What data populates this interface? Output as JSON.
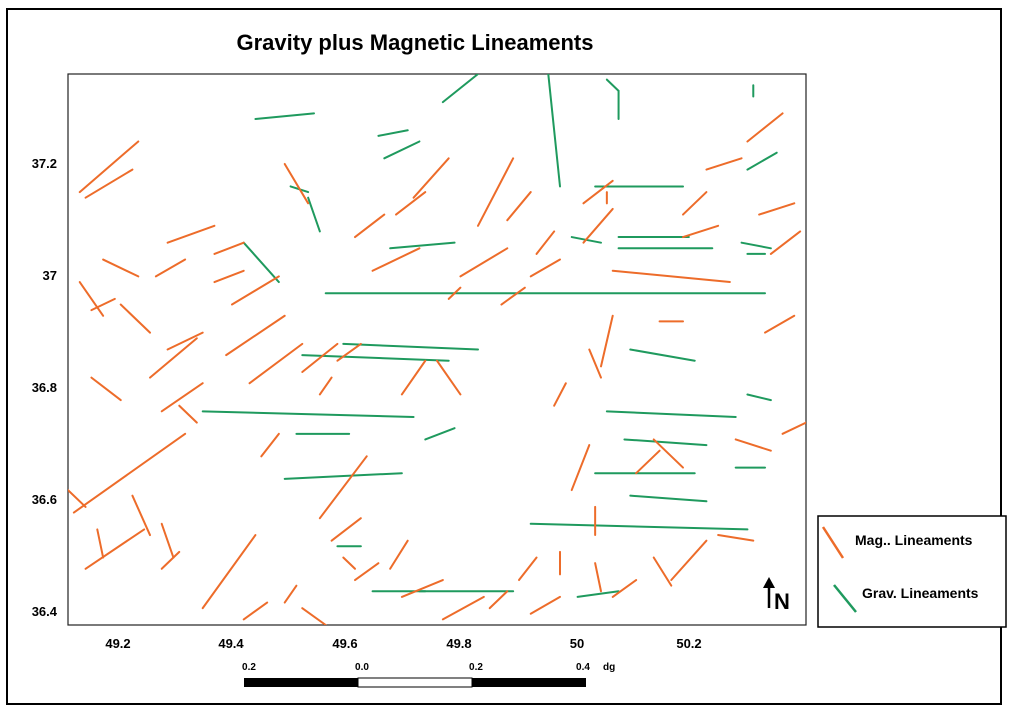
{
  "title": "Gravity plus Magnetic Lineaments",
  "map": {
    "x_ticks": [
      "49.2",
      "49.4",
      "49.6",
      "49.8",
      "50",
      "50.2"
    ],
    "y_ticks": [
      "37.2",
      "37",
      "36.8",
      "36.6",
      "36.4"
    ],
    "xlim": [
      49.13,
      50.39
    ],
    "ylim": [
      36.37,
      37.35
    ]
  },
  "scale_bar": {
    "labels": [
      "0.2",
      "0.0",
      "0.2",
      "0.4"
    ],
    "unit": "dg"
  },
  "north_arrow": {
    "label": "N"
  },
  "legend": {
    "mag": {
      "label": "Mag.. Lineaments",
      "color": "#ed6c2a"
    },
    "grav": {
      "label": "Grav. Lineaments",
      "color": "#1f9a5e"
    }
  },
  "lineaments": {
    "mag": [
      [
        49.15,
        37.14,
        49.25,
        37.23
      ],
      [
        49.16,
        37.13,
        49.24,
        37.18
      ],
      [
        49.15,
        36.98,
        49.19,
        36.92
      ],
      [
        49.17,
        36.93,
        49.21,
        36.95
      ],
      [
        49.19,
        37.02,
        49.25,
        36.99
      ],
      [
        49.22,
        36.94,
        49.27,
        36.89
      ],
      [
        49.28,
        36.99,
        49.33,
        37.02
      ],
      [
        49.3,
        37.05,
        49.38,
        37.08
      ],
      [
        49.27,
        36.81,
        49.35,
        36.88
      ],
      [
        49.3,
        36.86,
        49.36,
        36.89
      ],
      [
        49.17,
        36.81,
        49.22,
        36.77
      ],
      [
        49.29,
        36.75,
        49.36,
        36.8
      ],
      [
        49.32,
        36.76,
        49.35,
        36.73
      ],
      [
        49.14,
        36.57,
        49.33,
        36.71
      ],
      [
        49.13,
        36.61,
        49.16,
        36.58
      ],
      [
        49.18,
        36.54,
        49.19,
        36.49
      ],
      [
        49.16,
        36.47,
        49.26,
        36.54
      ],
      [
        49.24,
        36.6,
        49.27,
        36.53
      ],
      [
        49.29,
        36.55,
        49.31,
        36.49
      ],
      [
        49.29,
        36.47,
        49.32,
        36.5
      ],
      [
        49.36,
        36.4,
        49.45,
        36.53
      ],
      [
        49.38,
        37.03,
        49.43,
        37.05
      ],
      [
        49.38,
        36.98,
        49.43,
        37.0
      ],
      [
        49.41,
        36.94,
        49.49,
        36.99
      ],
      [
        49.4,
        36.85,
        49.5,
        36.92
      ],
      [
        49.44,
        36.8,
        49.53,
        36.87
      ],
      [
        49.46,
        36.67,
        49.49,
        36.71
      ],
      [
        49.5,
        37.19,
        49.54,
        37.12
      ],
      [
        49.53,
        36.82,
        49.59,
        36.87
      ],
      [
        49.56,
        36.78,
        49.58,
        36.81
      ],
      [
        49.59,
        36.84,
        49.63,
        36.87
      ],
      [
        49.56,
        36.56,
        49.64,
        36.67
      ],
      [
        49.58,
        36.52,
        49.63,
        36.56
      ],
      [
        49.62,
        37.06,
        49.67,
        37.1
      ],
      [
        49.65,
        37.0,
        49.73,
        37.04
      ],
      [
        49.69,
        37.1,
        49.74,
        37.14
      ],
      [
        49.7,
        36.78,
        49.74,
        36.84
      ],
      [
        49.72,
        37.13,
        49.78,
        37.2
      ],
      [
        49.76,
        36.84,
        49.8,
        36.78
      ],
      [
        49.78,
        36.95,
        49.8,
        36.97
      ],
      [
        49.8,
        36.99,
        49.88,
        37.04
      ],
      [
        49.83,
        37.08,
        49.89,
        37.2
      ],
      [
        49.87,
        36.94,
        49.91,
        36.97
      ],
      [
        49.88,
        37.09,
        49.92,
        37.14
      ],
      [
        49.92,
        36.99,
        49.97,
        37.02
      ],
      [
        49.93,
        37.03,
        49.96,
        37.07
      ],
      [
        49.96,
        36.76,
        49.98,
        36.8
      ],
      [
        49.97,
        36.5,
        49.97,
        36.46
      ],
      [
        49.99,
        36.61,
        50.02,
        36.69
      ],
      [
        50.01,
        37.12,
        50.06,
        37.16
      ],
      [
        50.01,
        37.05,
        50.06,
        37.11
      ],
      [
        50.02,
        36.86,
        50.04,
        36.81
      ],
      [
        50.04,
        36.83,
        50.06,
        36.92
      ],
      [
        50.05,
        37.14,
        50.05,
        37.12
      ],
      [
        50.03,
        36.58,
        50.03,
        36.53
      ],
      [
        50.03,
        36.48,
        50.04,
        36.43
      ],
      [
        50.06,
        36.42,
        50.1,
        36.45
      ],
      [
        50.1,
        36.64,
        50.14,
        36.68
      ],
      [
        50.13,
        36.7,
        50.18,
        36.65
      ],
      [
        50.13,
        36.49,
        50.16,
        36.44
      ],
      [
        50.16,
        36.45,
        50.22,
        36.52
      ],
      [
        50.18,
        37.06,
        50.24,
        37.08
      ],
      [
        50.18,
        37.1,
        50.22,
        37.14
      ],
      [
        50.22,
        37.18,
        50.28,
        37.2
      ],
      [
        50.24,
        36.53,
        50.3,
        36.52
      ],
      [
        50.27,
        36.7,
        50.33,
        36.68
      ],
      [
        50.29,
        37.23,
        50.35,
        37.28
      ],
      [
        50.31,
        37.1,
        50.37,
        37.12
      ],
      [
        50.32,
        36.89,
        50.37,
        36.92
      ],
      [
        50.33,
        37.03,
        50.38,
        37.07
      ],
      [
        50.35,
        36.71,
        50.39,
        36.73
      ],
      [
        50.06,
        37.0,
        50.26,
        36.98
      ],
      [
        50.14,
        36.91,
        50.18,
        36.91
      ],
      [
        49.85,
        36.4,
        49.88,
        36.43
      ],
      [
        49.77,
        36.38,
        49.84,
        36.42
      ],
      [
        49.7,
        36.42,
        49.77,
        36.45
      ],
      [
        49.68,
        36.47,
        49.71,
        36.52
      ],
      [
        49.62,
        36.45,
        49.66,
        36.48
      ],
      [
        49.9,
        36.45,
        49.93,
        36.49
      ],
      [
        49.92,
        36.39,
        49.97,
        36.42
      ],
      [
        49.6,
        36.49,
        49.62,
        36.47
      ],
      [
        49.53,
        36.4,
        49.57,
        36.37
      ],
      [
        49.43,
        36.38,
        49.47,
        36.41
      ],
      [
        49.5,
        36.41,
        49.52,
        36.44
      ]
    ],
    "grav": [
      [
        49.45,
        37.27,
        49.55,
        37.28
      ],
      [
        49.66,
        37.24,
        49.71,
        37.25
      ],
      [
        49.67,
        37.2,
        49.73,
        37.23
      ],
      [
        49.77,
        37.3,
        49.83,
        37.35
      ],
      [
        49.95,
        37.35,
        49.97,
        37.15
      ],
      [
        50.05,
        37.34,
        50.07,
        37.32
      ],
      [
        50.07,
        37.32,
        50.07,
        37.27
      ],
      [
        50.3,
        37.33,
        50.3,
        37.31
      ],
      [
        50.29,
        37.18,
        50.34,
        37.21
      ],
      [
        49.51,
        37.15,
        49.54,
        37.14
      ],
      [
        49.54,
        37.13,
        49.56,
        37.07
      ],
      [
        49.43,
        37.05,
        49.49,
        36.98
      ],
      [
        49.57,
        36.96,
        50.32,
        36.96
      ],
      [
        49.68,
        37.04,
        49.79,
        37.05
      ],
      [
        49.99,
        37.06,
        50.04,
        37.05
      ],
      [
        50.03,
        37.15,
        50.18,
        37.15
      ],
      [
        50.07,
        37.06,
        50.19,
        37.06
      ],
      [
        50.07,
        37.04,
        50.23,
        37.04
      ],
      [
        50.28,
        37.05,
        50.33,
        37.04
      ],
      [
        50.29,
        37.03,
        50.32,
        37.03
      ],
      [
        49.6,
        36.87,
        49.83,
        36.86
      ],
      [
        49.53,
        36.85,
        49.78,
        36.84
      ],
      [
        49.36,
        36.75,
        49.72,
        36.74
      ],
      [
        49.52,
        36.71,
        49.61,
        36.71
      ],
      [
        49.74,
        36.7,
        49.79,
        36.72
      ],
      [
        49.5,
        36.63,
        49.7,
        36.64
      ],
      [
        49.59,
        36.51,
        49.63,
        36.51
      ],
      [
        49.73,
        36.43,
        49.89,
        36.43
      ],
      [
        49.65,
        36.43,
        49.74,
        36.43
      ],
      [
        50.0,
        36.42,
        50.07,
        36.43
      ],
      [
        49.92,
        36.55,
        50.29,
        36.54
      ],
      [
        50.03,
        36.64,
        50.2,
        36.64
      ],
      [
        50.05,
        36.75,
        50.27,
        36.74
      ],
      [
        50.08,
        36.7,
        50.22,
        36.69
      ],
      [
        50.09,
        36.6,
        50.22,
        36.59
      ],
      [
        50.09,
        36.86,
        50.2,
        36.84
      ],
      [
        50.27,
        36.65,
        50.32,
        36.65
      ],
      [
        50.29,
        36.78,
        50.33,
        36.77
      ]
    ]
  }
}
